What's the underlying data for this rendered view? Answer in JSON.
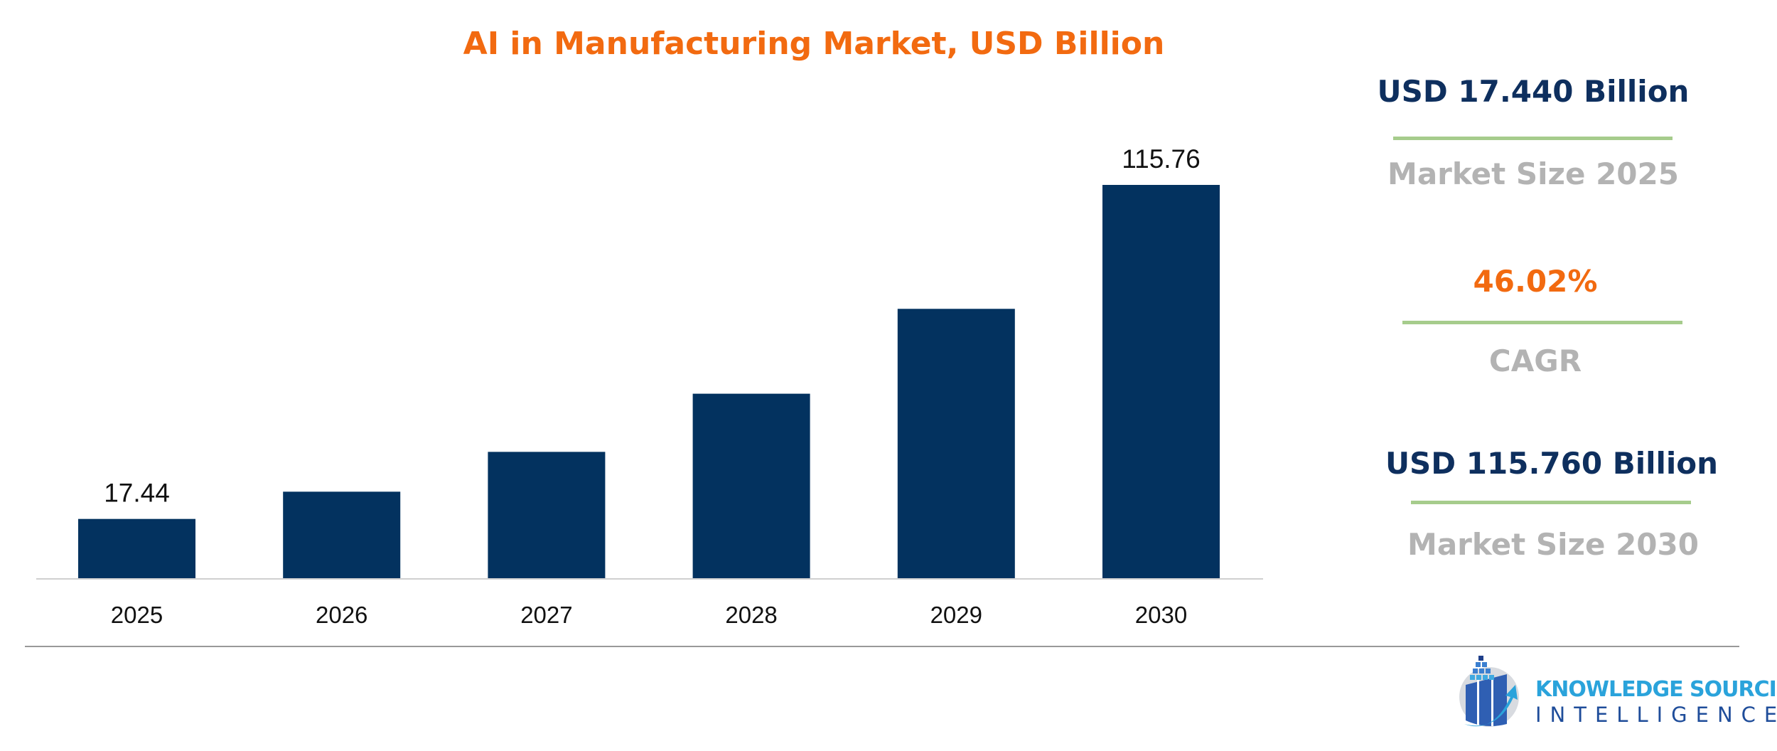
{
  "chart_data": {
    "type": "bar",
    "title": "AI in Manufacturing Market, USD Billion",
    "categories": [
      "2025",
      "2026",
      "2027",
      "2028",
      "2029",
      "2030"
    ],
    "values": [
      17.44,
      25.46,
      37.18,
      54.3,
      79.28,
      115.76
    ],
    "data_labels": {
      "2025": "17.44",
      "2030": "115.76"
    },
    "ylim": [
      0,
      120
    ],
    "grid": false,
    "bar_color": "#03325f"
  },
  "kpis": {
    "size_2025": {
      "value": "USD 17.440 Billion",
      "label": "Market Size 2025"
    },
    "cagr": {
      "value": "46.02%",
      "label": "CAGR"
    },
    "size_2030": {
      "value": "USD 115.760 Billion",
      "label": "Market Size 2030"
    }
  },
  "colors": {
    "title": "#f26a10",
    "kpi_value": "#0e2f5e",
    "kpi_cagr": "#f26a10",
    "kpi_label": "#b3b3b3",
    "separator": "#a6cc8c"
  },
  "logo": {
    "line1": "KNOWLEDGE SOURCING",
    "line2": "INTELLIGENCE"
  }
}
